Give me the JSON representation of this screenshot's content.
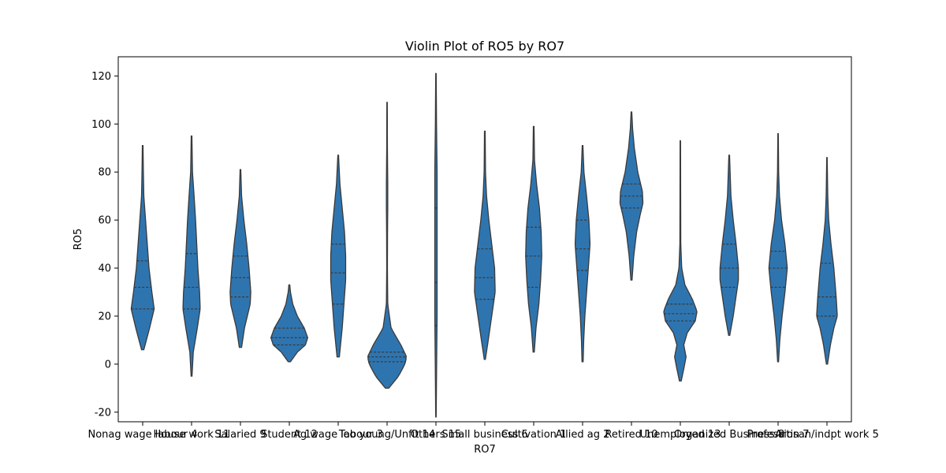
{
  "chart_data": {
    "type": "violin",
    "title": "Violin Plot of RO5 by RO7",
    "xlabel": "RO7",
    "ylabel": "RO5",
    "ylim": [
      -24,
      128
    ],
    "yticks": [
      -20,
      0,
      20,
      40,
      60,
      80,
      100,
      120
    ],
    "grid": false,
    "colors": {
      "fill": "#2e75b0",
      "edge": "#3a3a3a",
      "quartile": "#3a3a3a"
    },
    "categories": [
      "Nonag wage labour 4",
      "House work 11",
      "Salaried 9",
      "Student 12",
      "Ag wage labour 3",
      "Too young/Unfit 14",
      "Others 15",
      "Small business 6",
      "Cultivation 1",
      "Allied ag 2",
      "Retired 10",
      "Unemployed 13",
      "Organized Business 8",
      "Profession 7",
      "Artisan/indpt work 5"
    ],
    "series": [
      {
        "min": 6,
        "max": 91,
        "q1": 23,
        "median": 32,
        "q3": 43,
        "profile": [
          [
            6,
            0.1
          ],
          [
            15,
            0.6
          ],
          [
            23,
            1.0
          ],
          [
            30,
            0.8
          ],
          [
            40,
            0.55
          ],
          [
            50,
            0.4
          ],
          [
            60,
            0.25
          ],
          [
            70,
            0.1
          ],
          [
            80,
            0.06
          ],
          [
            91,
            0.03
          ]
        ]
      },
      {
        "min": -5,
        "max": 95,
        "q1": 23,
        "median": 32,
        "q3": 46,
        "profile": [
          [
            -5,
            0.04
          ],
          [
            5,
            0.15
          ],
          [
            15,
            0.5
          ],
          [
            23,
            0.75
          ],
          [
            30,
            0.7
          ],
          [
            40,
            0.55
          ],
          [
            50,
            0.45
          ],
          [
            60,
            0.35
          ],
          [
            70,
            0.22
          ],
          [
            80,
            0.08
          ],
          [
            95,
            0.03
          ]
        ]
      },
      {
        "min": 7,
        "max": 81,
        "q1": 28,
        "median": 36,
        "q3": 45,
        "profile": [
          [
            7,
            0.1
          ],
          [
            15,
            0.35
          ],
          [
            25,
            0.85
          ],
          [
            30,
            0.9
          ],
          [
            40,
            0.75
          ],
          [
            50,
            0.55
          ],
          [
            60,
            0.3
          ],
          [
            70,
            0.1
          ],
          [
            81,
            0.03
          ]
        ]
      },
      {
        "min": 1,
        "max": 33,
        "q1": 8,
        "median": 11,
        "q3": 15,
        "profile": [
          [
            1,
            0.1
          ],
          [
            5,
            0.7
          ],
          [
            8,
            1.4
          ],
          [
            11,
            1.6
          ],
          [
            15,
            1.3
          ],
          [
            20,
            0.7
          ],
          [
            25,
            0.3
          ],
          [
            30,
            0.1
          ],
          [
            33,
            0.04
          ]
        ]
      },
      {
        "min": 3,
        "max": 87,
        "q1": 25,
        "median": 38,
        "q3": 50,
        "profile": [
          [
            3,
            0.1
          ],
          [
            15,
            0.35
          ],
          [
            25,
            0.5
          ],
          [
            35,
            0.65
          ],
          [
            45,
            0.65
          ],
          [
            55,
            0.55
          ],
          [
            65,
            0.35
          ],
          [
            75,
            0.15
          ],
          [
            87,
            0.03
          ]
        ]
      },
      {
        "min": -10,
        "max": 109,
        "q1": 1,
        "median": 3,
        "q3": 5,
        "profile": [
          [
            -10,
            0.15
          ],
          [
            -5,
            1.0
          ],
          [
            0,
            1.55
          ],
          [
            3,
            1.7
          ],
          [
            8,
            1.2
          ],
          [
            15,
            0.35
          ],
          [
            25,
            0.06
          ],
          [
            40,
            0.03
          ],
          [
            55,
            0.04
          ],
          [
            65,
            0.06
          ],
          [
            75,
            0.06
          ],
          [
            90,
            0.03
          ],
          [
            109,
            0.02
          ]
        ]
      },
      {
        "min": -22,
        "max": 121,
        "q1": 16,
        "median": 34,
        "q3": 65,
        "profile": [
          [
            -22,
            0.02
          ],
          [
            0,
            0.06
          ],
          [
            20,
            0.1
          ],
          [
            40,
            0.1
          ],
          [
            60,
            0.1
          ],
          [
            80,
            0.1
          ],
          [
            100,
            0.05
          ],
          [
            121,
            0.02
          ]
        ]
      },
      {
        "min": 2,
        "max": 97,
        "q1": 27,
        "median": 36,
        "q3": 48,
        "profile": [
          [
            2,
            0.05
          ],
          [
            10,
            0.3
          ],
          [
            20,
            0.6
          ],
          [
            30,
            0.9
          ],
          [
            40,
            0.85
          ],
          [
            50,
            0.6
          ],
          [
            60,
            0.35
          ],
          [
            70,
            0.15
          ],
          [
            80,
            0.06
          ],
          [
            97,
            0.03
          ]
        ]
      },
      {
        "min": 5,
        "max": 99,
        "q1": 32,
        "median": 45,
        "q3": 57,
        "profile": [
          [
            5,
            0.05
          ],
          [
            15,
            0.2
          ],
          [
            25,
            0.45
          ],
          [
            35,
            0.6
          ],
          [
            45,
            0.7
          ],
          [
            55,
            0.65
          ],
          [
            65,
            0.5
          ],
          [
            75,
            0.25
          ],
          [
            85,
            0.07
          ],
          [
            99,
            0.03
          ]
        ]
      },
      {
        "min": 1,
        "max": 91,
        "q1": 39,
        "median": 48,
        "q3": 60,
        "profile": [
          [
            1,
            0.05
          ],
          [
            10,
            0.1
          ],
          [
            20,
            0.2
          ],
          [
            30,
            0.35
          ],
          [
            40,
            0.5
          ],
          [
            50,
            0.65
          ],
          [
            60,
            0.55
          ],
          [
            70,
            0.35
          ],
          [
            80,
            0.12
          ],
          [
            91,
            0.03
          ]
        ]
      },
      {
        "min": 35,
        "max": 105,
        "q1": 65,
        "median": 70,
        "q3": 75,
        "profile": [
          [
            35,
            0.05
          ],
          [
            45,
            0.2
          ],
          [
            55,
            0.45
          ],
          [
            62,
            0.75
          ],
          [
            67,
            1.0
          ],
          [
            72,
            0.95
          ],
          [
            80,
            0.55
          ],
          [
            90,
            0.25
          ],
          [
            98,
            0.1
          ],
          [
            105,
            0.03
          ]
        ]
      },
      {
        "min": -7,
        "max": 93,
        "q1": 18,
        "median": 21,
        "q3": 25,
        "profile": [
          [
            -7,
            0.08
          ],
          [
            -2,
            0.3
          ],
          [
            3,
            0.5
          ],
          [
            8,
            0.3
          ],
          [
            13,
            0.6
          ],
          [
            18,
            1.3
          ],
          [
            22,
            1.45
          ],
          [
            27,
            1.05
          ],
          [
            33,
            0.4
          ],
          [
            40,
            0.12
          ],
          [
            50,
            0.04
          ],
          [
            70,
            0.03
          ],
          [
            93,
            0.02
          ]
        ]
      },
      {
        "min": 12,
        "max": 87,
        "q1": 32,
        "median": 40,
        "q3": 50,
        "profile": [
          [
            12,
            0.05
          ],
          [
            20,
            0.35
          ],
          [
            30,
            0.65
          ],
          [
            35,
            0.8
          ],
          [
            40,
            0.8
          ],
          [
            50,
            0.6
          ],
          [
            60,
            0.35
          ],
          [
            70,
            0.15
          ],
          [
            87,
            0.03
          ]
        ]
      },
      {
        "min": 1,
        "max": 96,
        "q1": 32,
        "median": 40,
        "q3": 47,
        "profile": [
          [
            1,
            0.04
          ],
          [
            10,
            0.15
          ],
          [
            20,
            0.35
          ],
          [
            30,
            0.6
          ],
          [
            40,
            0.8
          ],
          [
            50,
            0.6
          ],
          [
            60,
            0.3
          ],
          [
            70,
            0.12
          ],
          [
            80,
            0.05
          ],
          [
            96,
            0.02
          ]
        ]
      },
      {
        "min": 0,
        "max": 86,
        "q1": 20,
        "median": 28,
        "q3": 42,
        "profile": [
          [
            0,
            0.05
          ],
          [
            8,
            0.3
          ],
          [
            15,
            0.6
          ],
          [
            20,
            0.9
          ],
          [
            28,
            0.8
          ],
          [
            40,
            0.6
          ],
          [
            50,
            0.35
          ],
          [
            60,
            0.15
          ],
          [
            70,
            0.07
          ],
          [
            86,
            0.02
          ]
        ]
      }
    ]
  }
}
